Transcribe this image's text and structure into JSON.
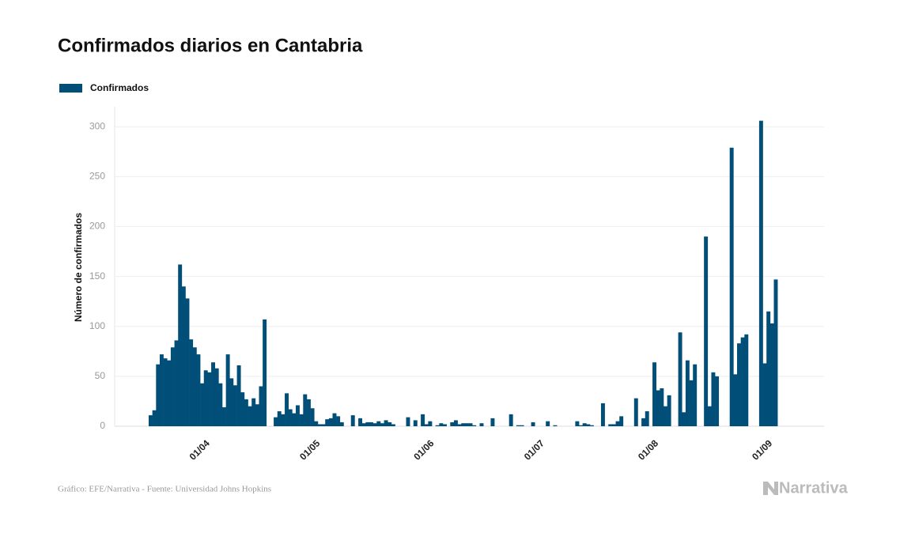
{
  "chart_data": {
    "type": "bar",
    "title": "Confirmados diarios en Cantabria",
    "y_label": "Número de confirmados",
    "source": "Gráfico: EFE/Narrativa - Fuente: Universidad Johns Hopkins",
    "brand": "Narrativa",
    "series": [
      {
        "name": "Confirmados",
        "color": "#014f78",
        "values": [
          11,
          16,
          62,
          72,
          68,
          66,
          79,
          86,
          162,
          140,
          128,
          87,
          79,
          72,
          43,
          56,
          54,
          64,
          58,
          43,
          19,
          72,
          48,
          41,
          61,
          34,
          27,
          20,
          28,
          22,
          40,
          107,
          0,
          0,
          9,
          15,
          12,
          33,
          17,
          13,
          21,
          12,
          32,
          27,
          18,
          5,
          2,
          2,
          7,
          8,
          13,
          10,
          4,
          0,
          0,
          11,
          0,
          8,
          3,
          4,
          4,
          3,
          5,
          3,
          6,
          4,
          2,
          0,
          0,
          0,
          9,
          0,
          6,
          0,
          12,
          2,
          5,
          0,
          1,
          3,
          2,
          0,
          4,
          6,
          2,
          3,
          3,
          3,
          1,
          0,
          3,
          0,
          0,
          8,
          0,
          0,
          0,
          0,
          12,
          0,
          1,
          1,
          0,
          0,
          4,
          0,
          0,
          0,
          5,
          0,
          1,
          0,
          0,
          0,
          0,
          0,
          5,
          1,
          3,
          2,
          1,
          0,
          0,
          23,
          0,
          2,
          2,
          5,
          10,
          0,
          0,
          0,
          28,
          0,
          8,
          15,
          0,
          64,
          36,
          38,
          20,
          31,
          0,
          0,
          94,
          14,
          66,
          46,
          62,
          0,
          0,
          190,
          20,
          54,
          50,
          0,
          0,
          0,
          279,
          52,
          83,
          89,
          92,
          0,
          0,
          0,
          306,
          63,
          115,
          103,
          147,
          0
        ]
      }
    ],
    "categories": [
      null,
      null,
      null,
      null,
      null,
      null,
      null,
      null,
      null,
      null,
      null,
      null,
      null,
      null,
      "01/04",
      null,
      null,
      null,
      null,
      null,
      null,
      null,
      null,
      null,
      null,
      null,
      null,
      null,
      null,
      null,
      null,
      null,
      null,
      null,
      null,
      null,
      null,
      null,
      null,
      null,
      null,
      null,
      null,
      null,
      "01/05",
      null,
      null,
      null,
      null,
      null,
      null,
      null,
      null,
      null,
      null,
      null,
      null,
      null,
      null,
      null,
      null,
      null,
      null,
      null,
      null,
      null,
      null,
      null,
      null,
      null,
      null,
      null,
      null,
      null,
      null,
      "01/06",
      null,
      null,
      null,
      null,
      null,
      null,
      null,
      null,
      null,
      null,
      null,
      null,
      null,
      null,
      null,
      null,
      null,
      null,
      null,
      null,
      null,
      null,
      null,
      null,
      null,
      null,
      null,
      null,
      null,
      "01/07",
      null,
      null,
      null,
      null,
      null,
      null,
      null,
      null,
      null,
      null,
      null,
      null,
      null,
      null,
      null,
      null,
      null,
      null,
      null,
      null,
      null,
      null,
      null,
      null,
      null,
      null,
      null,
      null,
      null,
      null,
      "01/08",
      null,
      null,
      null,
      null,
      null,
      null,
      null,
      null,
      null,
      null,
      null,
      null,
      null,
      null,
      null,
      null,
      null,
      null,
      null,
      null,
      null,
      null,
      null,
      null,
      null,
      null,
      null,
      null,
      null,
      null,
      "01/09",
      null,
      null,
      null,
      null
    ],
    "ylim": [
      0,
      320
    ],
    "yticks": [
      0,
      50,
      100,
      150,
      200,
      250,
      300
    ],
    "grid": true,
    "legend": "top-left"
  }
}
